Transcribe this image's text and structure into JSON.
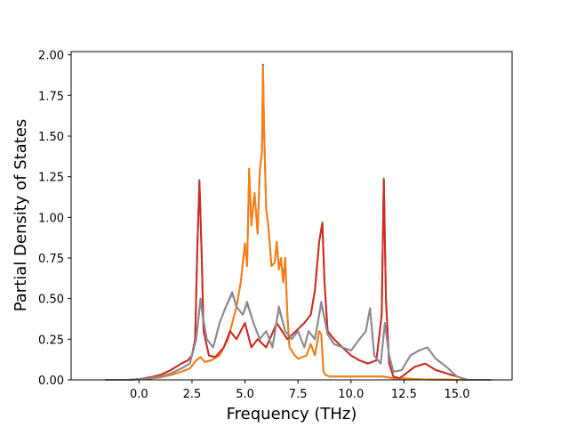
{
  "chart_data": {
    "type": "line",
    "title": "",
    "xlabel": "Frequency (THz)",
    "ylabel": "Partial Density of States",
    "xlim": [
      -3.2,
      17.6
    ],
    "ylim": [
      0,
      2.02
    ],
    "xticks": [
      0.0,
      2.5,
      5.0,
      7.5,
      10.0,
      12.5,
      15.0
    ],
    "xtick_labels": [
      "0.0",
      "2.5",
      "5.0",
      "7.5",
      "10.0",
      "12.5",
      "15.0"
    ],
    "yticks": [
      0.0,
      0.25,
      0.5,
      0.75,
      1.0,
      1.25,
      1.5,
      1.75,
      2.0
    ],
    "ytick_labels": [
      "0.00",
      "0.25",
      "0.50",
      "0.75",
      "1.00",
      "1.25",
      "1.50",
      "1.75",
      "2.00"
    ],
    "grid": false,
    "legend": "none",
    "series": [
      {
        "color": "#1f77b4",
        "x": [
          -1.6,
          -0.5,
          0.0,
          0.5,
          1.0,
          1.5,
          2.0,
          2.4,
          2.7,
          2.9,
          3.1,
          3.4,
          3.8,
          4.2,
          4.6,
          4.8,
          5.0,
          5.1,
          5.2,
          5.3,
          5.45,
          5.6,
          5.7,
          5.8,
          5.85,
          5.9,
          6.0,
          6.1,
          6.25,
          6.4,
          6.5,
          6.6,
          6.7,
          6.8,
          6.9,
          7.0,
          7.1,
          7.2,
          7.35,
          7.5,
          7.7,
          7.9,
          8.1,
          8.3,
          8.5,
          8.6,
          8.7,
          8.8,
          9.0,
          9.5,
          10.0,
          10.5,
          11.0,
          11.5,
          12.0,
          12.5,
          13.0,
          13.5,
          14.0,
          14.5,
          15.0,
          15.5,
          16.0,
          16.6
        ],
        "values": [
          0.0,
          0.0,
          0.003,
          0.008,
          0.015,
          0.03,
          0.05,
          0.07,
          0.12,
          0.14,
          0.11,
          0.12,
          0.15,
          0.25,
          0.45,
          0.6,
          0.84,
          0.7,
          1.3,
          0.95,
          1.15,
          0.9,
          1.29,
          1.4,
          1.94,
          1.55,
          1.05,
          0.95,
          0.7,
          0.72,
          0.85,
          0.68,
          0.75,
          0.6,
          0.75,
          0.4,
          0.2,
          0.18,
          0.15,
          0.13,
          0.14,
          0.15,
          0.22,
          0.15,
          0.3,
          0.28,
          0.05,
          0.03,
          0.02,
          0.02,
          0.02,
          0.02,
          0.02,
          0.02,
          0.01,
          0.01,
          0.005,
          0.003,
          0.002,
          0.001,
          0.0,
          0.0,
          0.0,
          0.0
        ]
      },
      {
        "color": "#ff7f0e",
        "x": [
          -1.6,
          -0.5,
          0.0,
          0.5,
          1.0,
          1.5,
          2.0,
          2.4,
          2.7,
          2.9,
          3.1,
          3.4,
          3.8,
          4.2,
          4.6,
          4.8,
          5.0,
          5.1,
          5.2,
          5.3,
          5.45,
          5.6,
          5.7,
          5.8,
          5.85,
          5.9,
          6.0,
          6.1,
          6.25,
          6.4,
          6.5,
          6.6,
          6.7,
          6.8,
          6.9,
          7.0,
          7.1,
          7.2,
          7.35,
          7.5,
          7.7,
          7.9,
          8.1,
          8.3,
          8.5,
          8.6,
          8.7,
          8.8,
          9.0,
          9.5,
          10.0,
          10.5,
          11.0,
          11.5,
          12.0,
          12.5,
          13.0,
          13.5,
          14.0,
          14.5,
          15.0,
          15.5,
          16.0,
          16.6
        ],
        "values": [
          0.0,
          0.0,
          0.003,
          0.008,
          0.015,
          0.03,
          0.05,
          0.07,
          0.12,
          0.14,
          0.11,
          0.12,
          0.15,
          0.25,
          0.45,
          0.6,
          0.84,
          0.7,
          1.3,
          0.95,
          1.15,
          0.9,
          1.29,
          1.4,
          1.93,
          1.55,
          1.05,
          0.95,
          0.7,
          0.72,
          0.85,
          0.68,
          0.75,
          0.6,
          0.75,
          0.4,
          0.2,
          0.18,
          0.15,
          0.13,
          0.14,
          0.15,
          0.22,
          0.15,
          0.3,
          0.28,
          0.05,
          0.03,
          0.02,
          0.02,
          0.02,
          0.02,
          0.02,
          0.02,
          0.01,
          0.01,
          0.005,
          0.003,
          0.002,
          0.001,
          0.0,
          0.0,
          0.0,
          0.0
        ]
      },
      {
        "color": "#2ca02c",
        "x": [
          -1.6,
          -0.5,
          0.0,
          0.5,
          1.0,
          1.5,
          2.0,
          2.3,
          2.5,
          2.65,
          2.75,
          2.85,
          2.95,
          3.05,
          3.3,
          3.6,
          4.0,
          4.3,
          4.6,
          5.0,
          5.3,
          5.6,
          6.0,
          6.5,
          7.0,
          7.4,
          7.8,
          8.1,
          8.3,
          8.5,
          8.65,
          8.75,
          8.9,
          9.2,
          9.6,
          10.0,
          10.4,
          10.8,
          11.2,
          11.45,
          11.55,
          11.65,
          11.8,
          12.0,
          12.3,
          12.7,
          13.0,
          13.5,
          14.0,
          14.5,
          15.0,
          15.5,
          16.6
        ],
        "values": [
          0.0,
          0.0,
          0.005,
          0.015,
          0.03,
          0.06,
          0.1,
          0.12,
          0.15,
          0.25,
          0.8,
          1.23,
          0.8,
          0.3,
          0.15,
          0.14,
          0.2,
          0.3,
          0.25,
          0.35,
          0.2,
          0.25,
          0.2,
          0.35,
          0.25,
          0.3,
          0.35,
          0.4,
          0.55,
          0.85,
          0.97,
          0.6,
          0.3,
          0.25,
          0.2,
          0.15,
          0.12,
          0.1,
          0.12,
          0.4,
          1.24,
          0.5,
          0.1,
          0.02,
          0.01,
          0.05,
          0.08,
          0.1,
          0.06,
          0.04,
          0.02,
          0.0,
          0.0
        ]
      },
      {
        "color": "#d62728",
        "x": [
          -1.6,
          -0.5,
          0.0,
          0.5,
          1.0,
          1.5,
          2.0,
          2.3,
          2.5,
          2.65,
          2.75,
          2.85,
          2.95,
          3.05,
          3.3,
          3.6,
          4.0,
          4.3,
          4.6,
          5.0,
          5.3,
          5.6,
          6.0,
          6.5,
          7.0,
          7.4,
          7.8,
          8.1,
          8.3,
          8.5,
          8.65,
          8.75,
          8.9,
          9.2,
          9.6,
          10.0,
          10.4,
          10.8,
          11.2,
          11.45,
          11.55,
          11.65,
          11.8,
          12.0,
          12.3,
          12.7,
          13.0,
          13.5,
          14.0,
          14.5,
          15.0,
          15.5,
          16.6
        ],
        "values": [
          0.0,
          0.0,
          0.005,
          0.015,
          0.03,
          0.06,
          0.1,
          0.12,
          0.15,
          0.25,
          0.8,
          1.22,
          0.8,
          0.3,
          0.15,
          0.14,
          0.2,
          0.3,
          0.25,
          0.35,
          0.2,
          0.25,
          0.2,
          0.35,
          0.25,
          0.3,
          0.35,
          0.4,
          0.55,
          0.85,
          0.96,
          0.6,
          0.3,
          0.25,
          0.2,
          0.15,
          0.12,
          0.1,
          0.12,
          0.4,
          1.23,
          0.5,
          0.1,
          0.02,
          0.01,
          0.05,
          0.08,
          0.1,
          0.06,
          0.04,
          0.02,
          0.0,
          0.0
        ]
      },
      {
        "color": "#9467bd",
        "x": [
          -1.6,
          -0.5,
          0.0,
          0.5,
          1.0,
          1.5,
          2.0,
          2.4,
          2.7,
          2.9,
          3.0,
          3.2,
          3.5,
          3.8,
          4.1,
          4.4,
          4.6,
          4.9,
          5.1,
          5.4,
          5.7,
          6.0,
          6.3,
          6.6,
          6.9,
          7.2,
          7.5,
          7.8,
          8.0,
          8.3,
          8.6,
          8.9,
          9.2,
          9.6,
          10.0,
          10.4,
          10.7,
          10.9,
          11.1,
          11.4,
          11.6,
          11.8,
          12.0,
          12.4,
          12.8,
          13.2,
          13.6,
          14.0,
          14.5,
          15.0,
          15.5,
          16.6
        ],
        "values": [
          0.0,
          0.0,
          0.005,
          0.01,
          0.02,
          0.04,
          0.07,
          0.1,
          0.25,
          0.5,
          0.4,
          0.25,
          0.2,
          0.35,
          0.45,
          0.54,
          0.45,
          0.4,
          0.48,
          0.35,
          0.25,
          0.3,
          0.2,
          0.45,
          0.3,
          0.25,
          0.3,
          0.2,
          0.3,
          0.25,
          0.48,
          0.28,
          0.22,
          0.2,
          0.18,
          0.25,
          0.3,
          0.44,
          0.15,
          0.1,
          0.35,
          0.15,
          0.05,
          0.06,
          0.15,
          0.18,
          0.2,
          0.13,
          0.08,
          0.02,
          0.0,
          0.0
        ]
      },
      {
        "color": "#8c8c8c",
        "x": [
          -1.6,
          -0.5,
          0.0,
          0.5,
          1.0,
          1.5,
          2.0,
          2.4,
          2.7,
          2.9,
          3.0,
          3.2,
          3.5,
          3.8,
          4.1,
          4.4,
          4.6,
          4.9,
          5.1,
          5.4,
          5.7,
          6.0,
          6.3,
          6.6,
          6.9,
          7.2,
          7.5,
          7.8,
          8.0,
          8.3,
          8.6,
          8.9,
          9.2,
          9.6,
          10.0,
          10.4,
          10.7,
          10.9,
          11.1,
          11.4,
          11.6,
          11.8,
          12.0,
          12.4,
          12.8,
          13.2,
          13.6,
          14.0,
          14.5,
          15.0,
          15.5,
          16.6
        ],
        "values": [
          0.0,
          0.0,
          0.005,
          0.01,
          0.02,
          0.04,
          0.07,
          0.1,
          0.25,
          0.49,
          0.4,
          0.25,
          0.2,
          0.35,
          0.45,
          0.53,
          0.45,
          0.4,
          0.47,
          0.35,
          0.25,
          0.3,
          0.2,
          0.44,
          0.3,
          0.25,
          0.3,
          0.2,
          0.3,
          0.25,
          0.47,
          0.28,
          0.22,
          0.2,
          0.18,
          0.25,
          0.3,
          0.44,
          0.15,
          0.1,
          0.35,
          0.15,
          0.05,
          0.06,
          0.15,
          0.18,
          0.2,
          0.13,
          0.08,
          0.02,
          0.0,
          0.0
        ]
      }
    ]
  }
}
